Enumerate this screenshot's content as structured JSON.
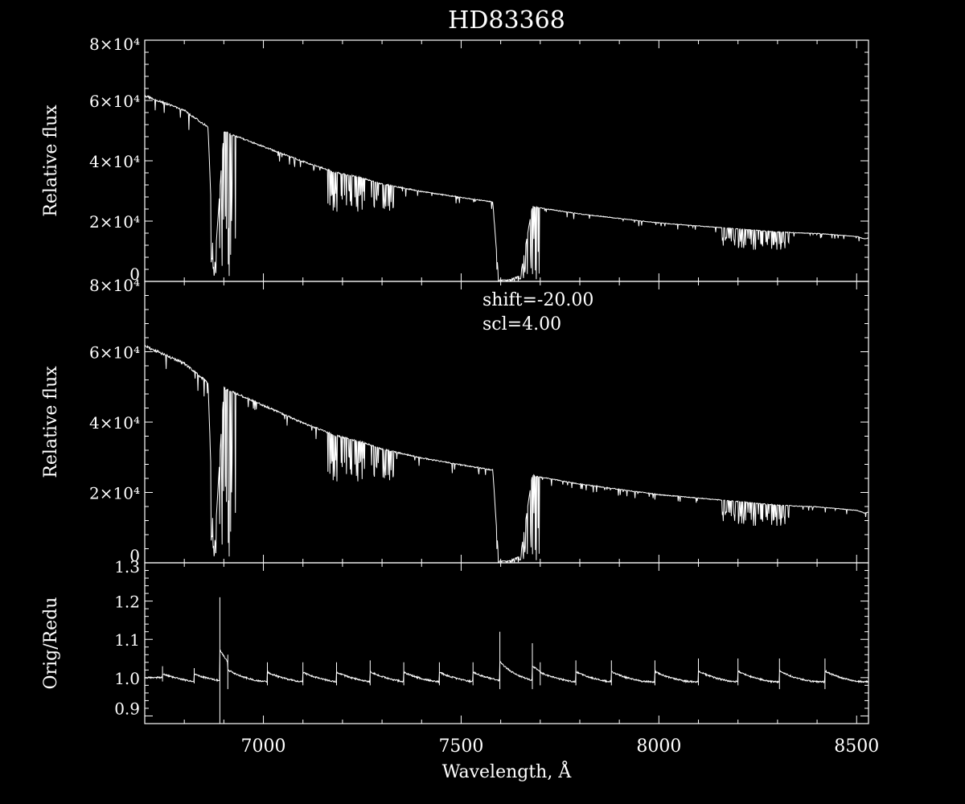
{
  "title": "HD83368",
  "chart_data": [
    {
      "type": "line",
      "ylabel": "Relative flux",
      "xlim": [
        6700,
        8530
      ],
      "ylim": [
        0,
        80000
      ],
      "yticks": [
        0,
        20000,
        40000,
        60000,
        80000
      ],
      "ytick_labels": [
        "0",
        "2×10⁴",
        "4×10⁴",
        "6×10⁴",
        "8×10⁴"
      ],
      "annotations": [],
      "series": [
        {
          "x": [
            6700,
            6800,
            6860,
            6875,
            6900,
            6950,
            7000,
            7100,
            7180,
            7250,
            7300,
            7400,
            7500,
            7580,
            7595,
            7620,
            7650,
            7680,
            7700,
            7800,
            7900,
            8000,
            8100,
            8150,
            8200,
            8250,
            8300,
            8350,
            8400,
            8450,
            8500,
            8520,
            8530
          ],
          "y": [
            62000,
            57000,
            51500,
            1500,
            50000,
            47500,
            45000,
            40000,
            36500,
            34500,
            32500,
            30000,
            28000,
            26500,
            500,
            500,
            2000,
            25000,
            24500,
            22500,
            21000,
            19500,
            18500,
            18000,
            17500,
            17000,
            16500,
            16200,
            16000,
            15500,
            15000,
            14200,
            14500
          ],
          "absorption_bands": [
            {
              "from": 6865,
              "to": 6930,
              "min": 1000
            },
            {
              "from": 7160,
              "to": 7330,
              "min": 23000
            },
            {
              "from": 7590,
              "to": 7700,
              "min": 0
            },
            {
              "from": 8160,
              "to": 8340,
              "min": 10500
            }
          ]
        }
      ]
    },
    {
      "type": "line",
      "ylabel": "Relative flux",
      "xlim": [
        6700,
        8530
      ],
      "ylim": [
        0,
        80000
      ],
      "yticks": [
        0,
        20000,
        40000,
        60000,
        80000
      ],
      "ytick_labels": [
        "0",
        "2×10⁴",
        "4×10⁴",
        "6×10⁴",
        "8×10⁴"
      ],
      "annotations": [
        "shift=-20.00",
        "scl=4.00"
      ],
      "series": [
        {
          "x": [
            6700,
            6800,
            6860,
            6875,
            6900,
            6950,
            7000,
            7100,
            7180,
            7250,
            7300,
            7400,
            7500,
            7580,
            7595,
            7620,
            7650,
            7680,
            7700,
            7800,
            7900,
            8000,
            8100,
            8150,
            8200,
            8250,
            8300,
            8350,
            8400,
            8450,
            8500,
            8520,
            8530
          ],
          "y": [
            62000,
            57000,
            51500,
            1500,
            50000,
            47500,
            45000,
            40000,
            36500,
            34500,
            32500,
            30000,
            28000,
            26500,
            500,
            500,
            2000,
            25000,
            24500,
            22500,
            21000,
            19500,
            18500,
            18000,
            17500,
            17000,
            16500,
            16200,
            16000,
            15500,
            15000,
            14200,
            14500
          ],
          "absorption_bands": [
            {
              "from": 6865,
              "to": 6930,
              "min": 1000
            },
            {
              "from": 7160,
              "to": 7330,
              "min": 23000
            },
            {
              "from": 7590,
              "to": 7700,
              "min": 0
            },
            {
              "from": 8160,
              "to": 8340,
              "min": 10500
            }
          ]
        }
      ]
    },
    {
      "type": "line",
      "ylabel": "Orig/Redu",
      "xlabel": "Wavelength, Å",
      "xlim": [
        6700,
        8530
      ],
      "xticks": [
        7000,
        7500,
        8000,
        8500
      ],
      "xtick_labels": [
        "7000",
        "7500",
        "8000",
        "8500"
      ],
      "ylim": [
        0.88,
        1.3
      ],
      "yticks": [
        0.9,
        1.0,
        1.1,
        1.2,
        1.3
      ],
      "ytick_labels": [
        "0.9",
        "1.0",
        "1.1",
        "1.2",
        "1.3"
      ],
      "series": [
        {
          "baseline": 1.0,
          "jumps": [
            {
              "x": 6745,
              "peak": 1.03,
              "dip": 0.99
            },
            {
              "x": 6825,
              "peak": 1.025,
              "dip": 0.985
            },
            {
              "x": 6890,
              "peak": 1.21,
              "dip": 0.88
            },
            {
              "x": 6910,
              "peak": 1.06,
              "dip": 0.97
            },
            {
              "x": 7010,
              "peak": 1.04,
              "dip": 0.98
            },
            {
              "x": 7100,
              "peak": 1.04,
              "dip": 0.98
            },
            {
              "x": 7185,
              "peak": 1.04,
              "dip": 0.98
            },
            {
              "x": 7270,
              "peak": 1.045,
              "dip": 0.98
            },
            {
              "x": 7355,
              "peak": 1.04,
              "dip": 0.98
            },
            {
              "x": 7445,
              "peak": 1.04,
              "dip": 0.98
            },
            {
              "x": 7530,
              "peak": 1.04,
              "dip": 0.98
            },
            {
              "x": 7598,
              "peak": 1.12,
              "dip": 0.97
            },
            {
              "x": 7680,
              "peak": 1.09,
              "dip": 0.97
            },
            {
              "x": 7700,
              "peak": 1.04,
              "dip": 0.98
            },
            {
              "x": 7790,
              "peak": 1.045,
              "dip": 0.98
            },
            {
              "x": 7880,
              "peak": 1.045,
              "dip": 0.98
            },
            {
              "x": 7990,
              "peak": 1.045,
              "dip": 0.98
            },
            {
              "x": 8100,
              "peak": 1.05,
              "dip": 0.98
            },
            {
              "x": 8200,
              "peak": 1.05,
              "dip": 0.98
            },
            {
              "x": 8305,
              "peak": 1.05,
              "dip": 0.97
            },
            {
              "x": 8420,
              "peak": 1.05,
              "dip": 0.97
            }
          ]
        }
      ]
    }
  ]
}
